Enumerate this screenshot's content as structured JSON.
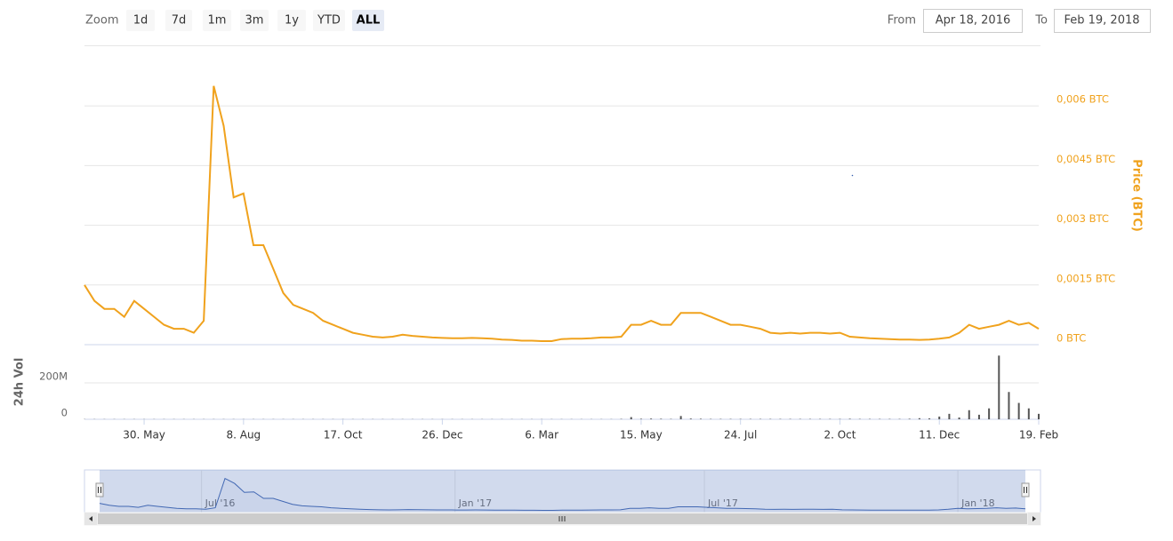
{
  "range_selector": {
    "label": "Zoom",
    "buttons": [
      "1d",
      "7d",
      "1m",
      "3m",
      "1y",
      "YTD",
      "ALL"
    ],
    "selected": 6,
    "from_label": "From",
    "from_value": "Apr 18, 2016",
    "to_label": "To",
    "to_value": "Feb 19, 2018"
  },
  "chart_data": {
    "type": "line",
    "x": [
      "2016-04-18",
      "2016-04-25",
      "2016-05-02",
      "2016-05-09",
      "2016-05-16",
      "2016-05-23",
      "2016-05-30",
      "2016-06-06",
      "2016-06-13",
      "2016-06-20",
      "2016-06-27",
      "2016-07-04",
      "2016-07-11",
      "2016-07-18",
      "2016-07-25",
      "2016-08-01",
      "2016-08-08",
      "2016-08-15",
      "2016-08-22",
      "2016-08-29",
      "2016-09-05",
      "2016-09-12",
      "2016-09-19",
      "2016-09-26",
      "2016-10-03",
      "2016-10-10",
      "2016-10-17",
      "2016-10-24",
      "2016-10-31",
      "2016-11-07",
      "2016-11-14",
      "2016-11-21",
      "2016-11-28",
      "2016-12-05",
      "2016-12-12",
      "2016-12-19",
      "2016-12-26",
      "2017-01-02",
      "2017-01-09",
      "2017-01-16",
      "2017-01-23",
      "2017-01-30",
      "2017-02-06",
      "2017-02-13",
      "2017-02-20",
      "2017-02-27",
      "2017-03-06",
      "2017-03-13",
      "2017-03-20",
      "2017-03-27",
      "2017-04-03",
      "2017-04-10",
      "2017-04-17",
      "2017-04-24",
      "2017-05-01",
      "2017-05-08",
      "2017-05-15",
      "2017-05-22",
      "2017-05-29",
      "2017-06-05",
      "2017-06-12",
      "2017-06-19",
      "2017-06-26",
      "2017-07-03",
      "2017-07-10",
      "2017-07-17",
      "2017-07-24",
      "2017-07-31",
      "2017-08-07",
      "2017-08-14",
      "2017-08-21",
      "2017-08-28",
      "2017-09-04",
      "2017-09-11",
      "2017-09-18",
      "2017-09-25",
      "2017-10-02",
      "2017-10-09",
      "2017-10-16",
      "2017-10-23",
      "2017-10-30",
      "2017-11-06",
      "2017-11-13",
      "2017-11-20",
      "2017-11-27",
      "2017-12-04",
      "2017-12-11",
      "2017-12-18",
      "2017-12-25",
      "2018-01-01",
      "2018-01-08",
      "2018-01-15",
      "2018-01-22",
      "2018-01-29",
      "2018-02-05",
      "2018-02-12",
      "2018-02-19"
    ],
    "xlim": [
      "2016-04-18",
      "2018-02-19"
    ],
    "xticks": [
      {
        "value": "2016-05-30",
        "label": "30. May"
      },
      {
        "value": "2016-08-08",
        "label": "8. Aug"
      },
      {
        "value": "2016-10-17",
        "label": "17. Oct"
      },
      {
        "value": "2016-12-26",
        "label": "26. Dec"
      },
      {
        "value": "2017-03-06",
        "label": "6. Mar"
      },
      {
        "value": "2017-05-15",
        "label": "15. May"
      },
      {
        "value": "2017-07-24",
        "label": "24. Jul"
      },
      {
        "value": "2017-10-02",
        "label": "2. Oct"
      },
      {
        "value": "2017-12-11",
        "label": "11. Dec"
      },
      {
        "value": "2018-02-19",
        "label": "19. Feb"
      }
    ],
    "ylabel": "Price (BTC)",
    "ylim": [
      0,
      0.0075
    ],
    "yticks": [
      {
        "value": 0,
        "label": "0 BTC"
      },
      {
        "value": 0.0015,
        "label": "0,0015 BTC"
      },
      {
        "value": 0.003,
        "label": "0,003 BTC"
      },
      {
        "value": 0.0045,
        "label": "0,0045 BTC"
      },
      {
        "value": 0.006,
        "label": "0,006 BTC"
      }
    ],
    "y2label": "24h Vol",
    "y2lim": [
      0,
      410000000
    ],
    "y2ticks": [
      0,
      {
        "value": 200000000,
        "label": "200M"
      }
    ],
    "grid": true,
    "series": [
      {
        "color": "#f0a21d",
        "values": [
          0.0015,
          0.0011,
          0.0009,
          0.0009,
          0.0007,
          0.0011,
          0.0009,
          0.0007,
          0.0005,
          0.0004,
          0.0004,
          0.0003,
          0.0006,
          0.0065,
          0.0055,
          0.0037,
          0.0038,
          0.0025,
          0.0025,
          0.0019,
          0.0013,
          0.001,
          0.0009,
          0.0008,
          0.0006,
          0.0005,
          0.0004,
          0.0003,
          0.00025,
          0.0002,
          0.00018,
          0.0002,
          0.00025,
          0.00022,
          0.0002,
          0.00018,
          0.00017,
          0.00016,
          0.00016,
          0.00017,
          0.00016,
          0.00015,
          0.00013,
          0.00012,
          0.0001,
          0.0001,
          9e-05,
          9e-05,
          0.00014,
          0.00015,
          0.00015,
          0.00016,
          0.00018,
          0.00018,
          0.0002,
          0.0005,
          0.0005,
          0.0006,
          0.0005,
          0.0005,
          0.0008,
          0.0008,
          0.0008,
          0.0007,
          0.0006,
          0.0005,
          0.0005,
          0.00045,
          0.0004,
          0.0003,
          0.00028,
          0.0003,
          0.00028,
          0.0003,
          0.0003,
          0.00028,
          0.0003,
          0.0002,
          0.00018,
          0.00016,
          0.00015,
          0.00014,
          0.00013,
          0.00013,
          0.00012,
          0.00013,
          0.00015,
          0.00018,
          0.0003,
          0.0005,
          0.0004,
          0.00045,
          0.0005,
          0.0006,
          0.0005,
          0.00055,
          0.0004
        ]
      },
      {
        "type": "column",
        "axis": "y2",
        "color": "#555555",
        "values": [
          1000000,
          1000000,
          1000000,
          1000000,
          1000000,
          1000000,
          1000000,
          1000000,
          1000000,
          1000000,
          1000000,
          1000000,
          1000000,
          1000000,
          1000000,
          1000000,
          1000000,
          1000000,
          1000000,
          1000000,
          1000000,
          1000000,
          1000000,
          1000000,
          1000000,
          1000000,
          1000000,
          1000000,
          1000000,
          1000000,
          1000000,
          1000000,
          1000000,
          1000000,
          1000000,
          1000000,
          1000000,
          1000000,
          1000000,
          1000000,
          1000000,
          1000000,
          1000000,
          1000000,
          1000000,
          1000000,
          1000000,
          1000000,
          1000000,
          1000000,
          1000000,
          1000000,
          1000000,
          1000000,
          2000000,
          12000000,
          3000000,
          4000000,
          3000000,
          2000000,
          18000000,
          4000000,
          3000000,
          2000000,
          2000000,
          2000000,
          2000000,
          2000000,
          2000000,
          2000000,
          2000000,
          2000000,
          2000000,
          2000000,
          2000000,
          2000000,
          2000000,
          3000000,
          2000000,
          2000000,
          2000000,
          2000000,
          2000000,
          3000000,
          6000000,
          5000000,
          15000000,
          30000000,
          10000000,
          50000000,
          25000000,
          60000000,
          350000000,
          150000000,
          90000000,
          60000000,
          30000000
        ]
      }
    ],
    "navigator": {
      "color": "#335cad",
      "xticks": [
        {
          "value": "2016-07-01",
          "label": "Jul '16"
        },
        {
          "value": "2017-01-01",
          "label": "Jan '17"
        },
        {
          "value": "2017-07-01",
          "label": "Jul '17"
        },
        {
          "value": "2018-01-01",
          "label": "Jan '18"
        }
      ]
    }
  }
}
